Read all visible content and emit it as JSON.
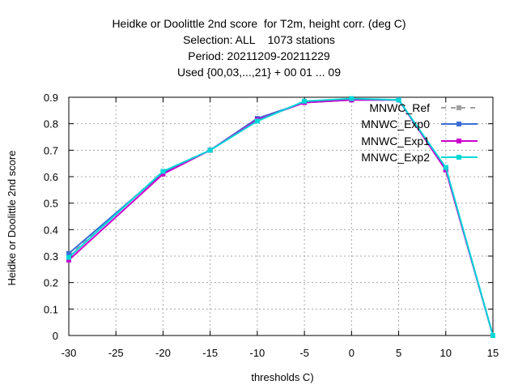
{
  "titles": [
    "Heidke or Doolittle 2nd score  for T2m, height corr. (deg C)",
    "Selection: ALL    1073 stations",
    "Period: 20211209-20211229",
    "Used {00,03,...,21} + 00 01 ... 09"
  ],
  "chart_data": {
    "type": "line",
    "xlabel": "thresholds C)",
    "ylabel": "Heidke or Doolittle 2nd score",
    "xlim": [
      -30,
      15
    ],
    "ylim": [
      0,
      0.9
    ],
    "xticks": [
      -30,
      -25,
      -20,
      -15,
      -10,
      -5,
      0,
      5,
      10,
      15
    ],
    "yticks": [
      0,
      0.1,
      0.2,
      0.3,
      0.4,
      0.5,
      0.6,
      0.7,
      0.8,
      0.9
    ],
    "ytick_labels": [
      "0",
      "0.1",
      "0.2",
      "0.3",
      "0.4",
      "0.5",
      "0.6",
      "0.7",
      "0.8",
      "0.9"
    ],
    "grid": true,
    "legend_position": "top-right",
    "x": [
      -30,
      -20,
      -15,
      -10,
      -5,
      0,
      5,
      10,
      15
    ],
    "series": [
      {
        "name": "MNWC_Ref",
        "color": "#a0a0a0",
        "dashed": true,
        "values": [
          0.3,
          0.62,
          0.7,
          0.815,
          0.88,
          0.89,
          0.89,
          0.63,
          0.0
        ]
      },
      {
        "name": "MNWC_Exp0",
        "color": "#3a6ed6",
        "dashed": false,
        "values": [
          0.31,
          0.615,
          0.7,
          0.82,
          0.88,
          0.89,
          0.89,
          0.63,
          0.0
        ]
      },
      {
        "name": "MNWC_Exp1",
        "color": "#cc00cc",
        "dashed": false,
        "values": [
          0.285,
          0.61,
          0.7,
          0.815,
          0.88,
          0.89,
          0.89,
          0.625,
          0.0
        ]
      },
      {
        "name": "MNWC_Exp2",
        "color": "#00d8d8",
        "dashed": false,
        "values": [
          0.295,
          0.62,
          0.7,
          0.81,
          0.885,
          0.895,
          0.89,
          0.635,
          0.0
        ]
      }
    ]
  }
}
